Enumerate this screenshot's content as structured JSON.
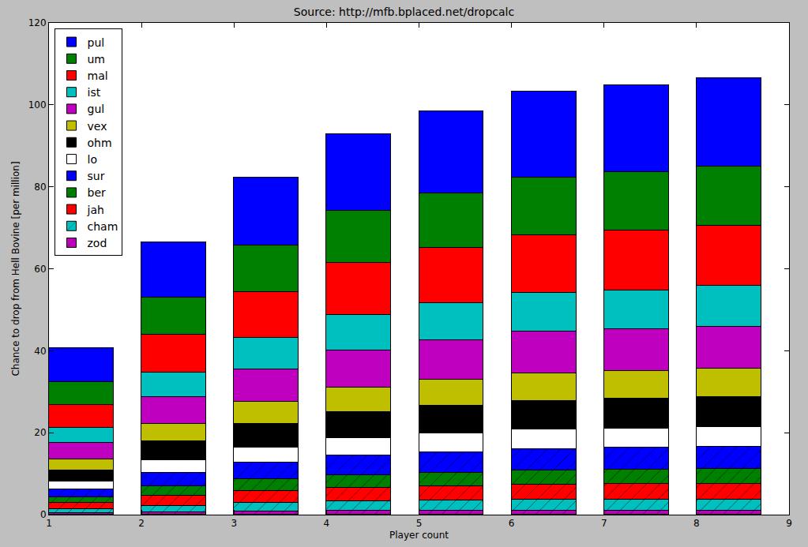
{
  "chart_data": {
    "type": "bar",
    "stacked": true,
    "title": "Source: http://mfb.bplaced.net/dropcalc",
    "x_label": "Player count",
    "y_label": "Chance to drop from Hell Bovine [per million]",
    "x": [
      1,
      2,
      3,
      4,
      5,
      6,
      7,
      8
    ],
    "xlim": [
      1,
      9
    ],
    "xticks": [
      1,
      2,
      3,
      4,
      5,
      6,
      7,
      8,
      9
    ],
    "ylim": [
      0,
      120
    ],
    "yticks": [
      0,
      20,
      40,
      60,
      80,
      100,
      120
    ],
    "grid": false,
    "legend": "upper left",
    "series": [
      {
        "name": "pul",
        "color": "#0000ff",
        "marker": "solid",
        "values": [
          8.3,
          13.4,
          16.7,
          18.8,
          20.1,
          21.0,
          21.2,
          21.6
        ]
      },
      {
        "name": "um",
        "color": "#008000",
        "marker": "solid",
        "values": [
          5.7,
          9.1,
          11.2,
          12.7,
          13.2,
          14.1,
          14.2,
          14.5
        ]
      },
      {
        "name": "mal",
        "color": "#ff0000",
        "marker": "solid",
        "values": [
          5.5,
          9.3,
          11.2,
          12.7,
          13.6,
          14.1,
          14.6,
          14.7
        ]
      },
      {
        "name": "ist",
        "color": "#00bfbf",
        "marker": "solid",
        "values": [
          3.7,
          5.9,
          7.8,
          8.6,
          9.1,
          9.5,
          9.6,
          9.9
        ]
      },
      {
        "name": "gul",
        "color": "#bf00bf",
        "marker": "solid",
        "values": [
          4.0,
          6.6,
          7.9,
          9.1,
          9.6,
          10.2,
          10.1,
          10.3
        ]
      },
      {
        "name": "vex",
        "color": "#bfbf00",
        "marker": "solid",
        "values": [
          2.7,
          4.2,
          5.4,
          6.0,
          6.4,
          6.7,
          6.8,
          6.9
        ]
      },
      {
        "name": "ohm",
        "color": "#000000",
        "marker": "solid",
        "values": [
          2.8,
          4.6,
          5.7,
          6.4,
          6.7,
          6.9,
          7.3,
          7.4
        ]
      },
      {
        "name": "lo",
        "color": "#ffffff",
        "marker": "solid",
        "values": [
          1.8,
          3.1,
          3.7,
          4.2,
          4.6,
          4.8,
          4.7,
          4.8
        ]
      },
      {
        "name": "sur",
        "color": "#0000ff",
        "marker": "hatched",
        "values": [
          1.9,
          3.2,
          4.0,
          4.7,
          4.9,
          5.2,
          5.3,
          5.3
        ]
      },
      {
        "name": "ber",
        "color": "#008000",
        "marker": "hatched",
        "values": [
          1.5,
          2.4,
          2.9,
          3.1,
          3.3,
          3.4,
          3.5,
          3.6
        ]
      },
      {
        "name": "jah",
        "color": "#ff0000",
        "marker": "hatched",
        "values": [
          1.5,
          2.5,
          3.0,
          3.4,
          3.6,
          3.8,
          3.9,
          4.0
        ]
      },
      {
        "name": "cham",
        "color": "#00bfbf",
        "marker": "hatched",
        "values": [
          0.9,
          1.5,
          2.1,
          2.3,
          2.5,
          2.6,
          2.6,
          2.6
        ]
      },
      {
        "name": "zod",
        "color": "#bf00bf",
        "marker": "hatched",
        "values": [
          0.4,
          0.6,
          0.7,
          0.9,
          0.9,
          1.0,
          1.0,
          1.0
        ]
      }
    ]
  }
}
